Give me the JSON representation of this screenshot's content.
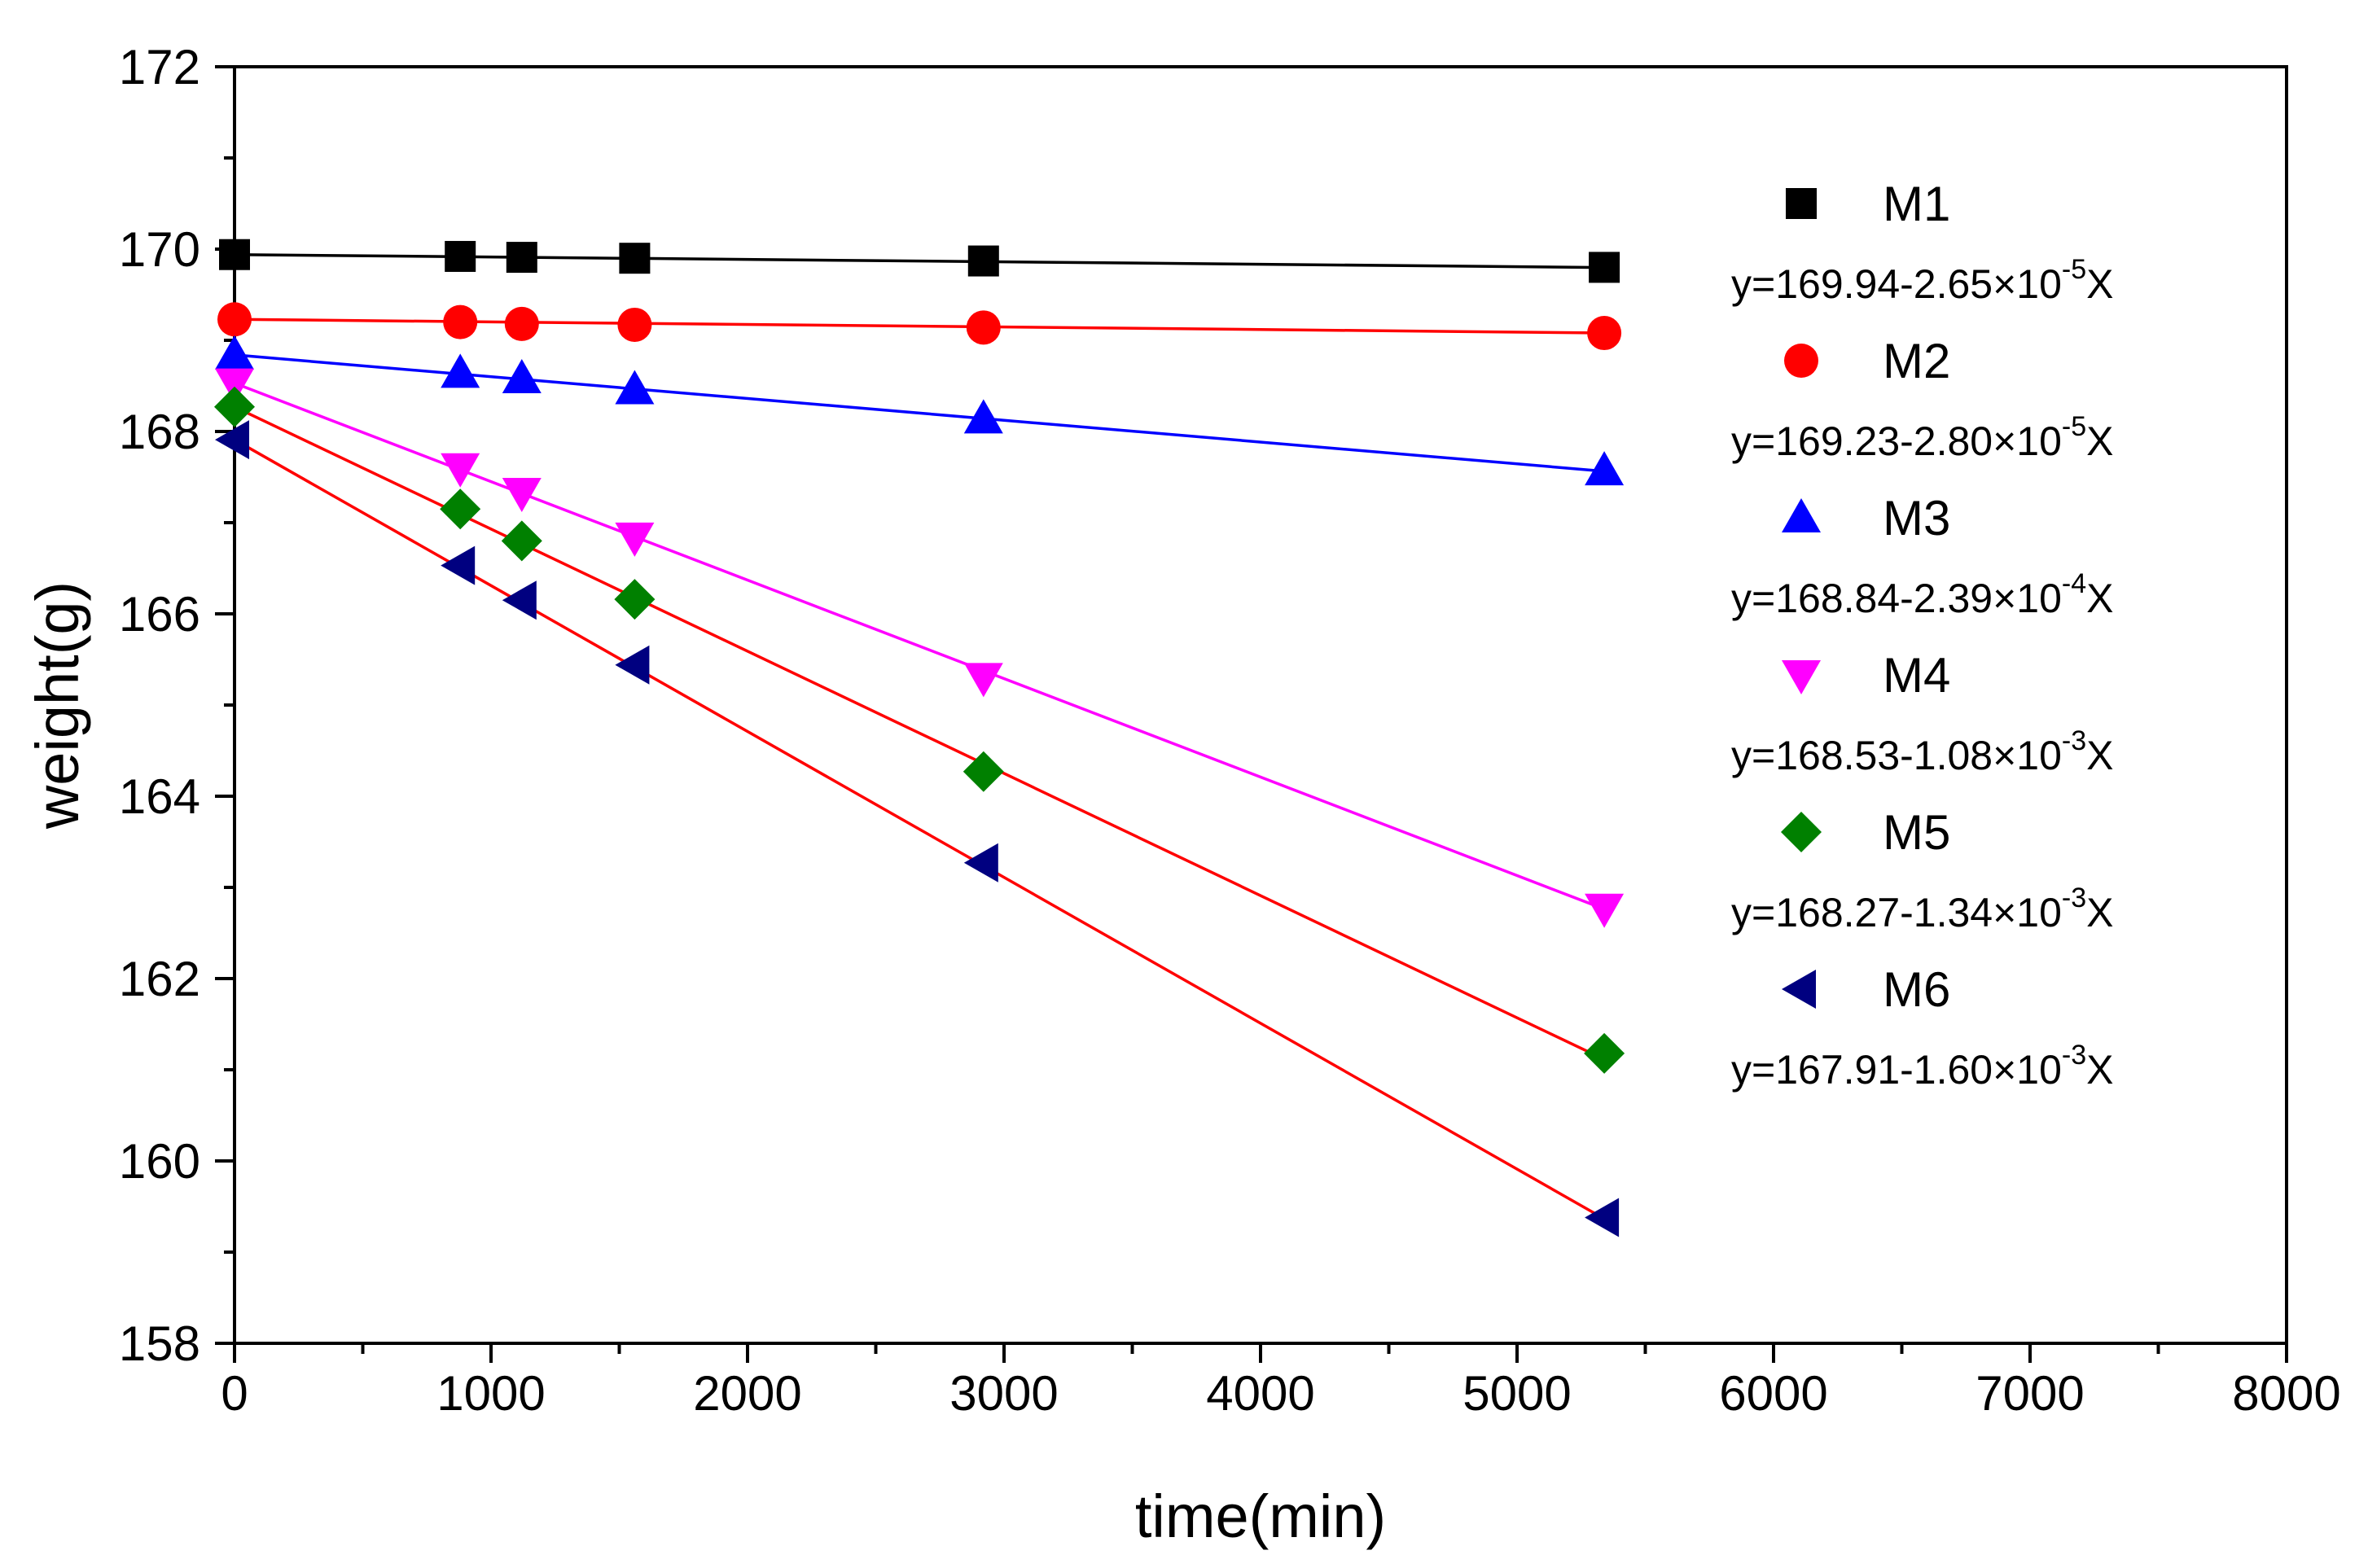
{
  "chart_data": {
    "type": "scatter",
    "title": "",
    "xlabel": "time(min)",
    "ylabel": "weight(g)",
    "xlim": [
      0,
      8000
    ],
    "ylim": [
      158,
      172
    ],
    "x_major_ticks": [
      0,
      1000,
      2000,
      3000,
      4000,
      5000,
      6000,
      7000,
      8000
    ],
    "y_major_ticks": [
      158,
      160,
      162,
      164,
      166,
      168,
      170,
      172
    ],
    "x_tick_labels": [
      "0",
      "1000",
      "2000",
      "3000",
      "4000",
      "5000",
      "6000",
      "7000",
      "8000"
    ],
    "y_tick_labels": [
      "158",
      "160",
      "162",
      "164",
      "166",
      "168",
      "170",
      "172"
    ],
    "grid": false,
    "legend_position": "right",
    "x": [
      0,
      880,
      1120,
      1560,
      2920,
      5340
    ],
    "series": [
      {
        "name": "M1",
        "marker": "square",
        "color": "#000000",
        "fit_color": "#000000",
        "values": [
          169.94,
          169.92,
          169.91,
          169.9,
          169.87,
          169.8
        ],
        "fit": {
          "intercept": 169.94,
          "slope": -2.65e-05
        },
        "eq_base": "y=169.94-2.65×10",
        "eq_exp": "-5",
        "eq_var": "X"
      },
      {
        "name": "M2",
        "marker": "circle",
        "color": "#ff0000",
        "fit_color": "#ff0000",
        "values": [
          169.23,
          169.2,
          169.18,
          169.17,
          169.14,
          169.08
        ],
        "fit": {
          "intercept": 169.23,
          "slope": -2.8e-05
        },
        "eq_base": "y=169.23-2.80×10",
        "eq_exp": "-5",
        "eq_var": "X"
      },
      {
        "name": "M3",
        "marker": "triangle-up",
        "color": "#0000ff",
        "fit_color": "#0000ff",
        "values": [
          168.84,
          168.64,
          168.58,
          168.46,
          168.14,
          167.57
        ],
        "fit": {
          "intercept": 168.84,
          "slope": -0.000239
        },
        "eq_base": "y=168.84-2.39×10",
        "eq_exp": "-4",
        "eq_var": "X"
      },
      {
        "name": "M4",
        "marker": "triangle-down",
        "color": "#ff00ff",
        "fit_color": "#ff00ff",
        "values": [
          168.53,
          167.6,
          167.33,
          166.84,
          165.3,
          162.77
        ],
        "fit": {
          "intercept": 168.53,
          "slope": -0.00108
        },
        "eq_base": "y=168.53-1.08×10",
        "eq_exp": "-3",
        "eq_var": "X"
      },
      {
        "name": "M5",
        "marker": "diamond",
        "color": "#008000",
        "fit_color": "#ff0000",
        "values": [
          168.27,
          167.15,
          166.8,
          166.16,
          164.27,
          161.18
        ],
        "fit": {
          "intercept": 168.27,
          "slope": -0.00134
        },
        "eq_base": "y=168.27-1.34×10",
        "eq_exp": "-3",
        "eq_var": "X"
      },
      {
        "name": "M6",
        "marker": "triangle-left",
        "color": "#000080",
        "fit_color": "#ff0000",
        "values": [
          167.91,
          166.53,
          166.15,
          165.44,
          163.27,
          159.38
        ],
        "fit": {
          "intercept": 167.91,
          "slope": -0.0016
        },
        "eq_base": "y=167.91-1.60×10",
        "eq_exp": "-3",
        "eq_var": "X"
      }
    ]
  }
}
